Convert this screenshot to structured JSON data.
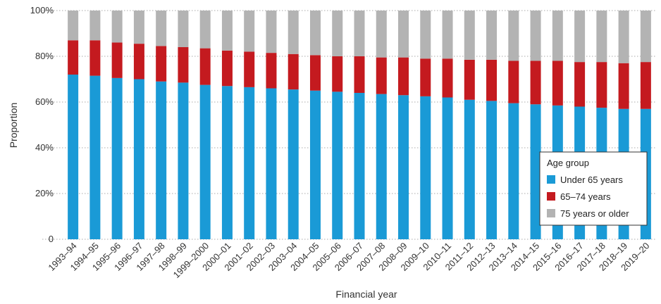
{
  "chart_data": {
    "type": "bar",
    "stacked": true,
    "xlabel": "Financial year",
    "ylabel": "Proportion",
    "ylim": [
      0,
      100
    ],
    "yticks": [
      "0",
      "20%",
      "40%",
      "60%",
      "80%",
      "100%"
    ],
    "categories": [
      "1993–94",
      "1994–95",
      "1995–96",
      "1996–97",
      "1997–98",
      "1998–99",
      "1999–2000",
      "2000–01",
      "2001–02",
      "2002–03",
      "2003–04",
      "2004–05",
      "2005–06",
      "2006–07",
      "2007–08",
      "2008–09",
      "2009–10",
      "2010–11",
      "2011–12",
      "2012–13",
      "2013–14",
      "2014–15",
      "2015–16",
      "2016–17",
      "2017–18",
      "2018–19",
      "2019–20"
    ],
    "legend": {
      "title": "Age group",
      "placement": "bottom-right"
    },
    "series": [
      {
        "name": "Under 65 years",
        "color": "#1a9ad6",
        "values": [
          72,
          71.5,
          70.5,
          70,
          69,
          68.5,
          67.5,
          67,
          66.5,
          66,
          65.5,
          65,
          64.5,
          64,
          63.5,
          63,
          62.5,
          62,
          61,
          60.5,
          59.5,
          59,
          58.5,
          58,
          57.5,
          57,
          57
        ]
      },
      {
        "name": "65–74 years",
        "color": "#c41a1f",
        "values": [
          15,
          15.5,
          15.5,
          15.5,
          15.5,
          15.5,
          16,
          15.5,
          15.5,
          15.5,
          15.5,
          15.5,
          15.5,
          16,
          16,
          16.5,
          16.5,
          17,
          17.5,
          18,
          18.5,
          19,
          19.5,
          19.5,
          20,
          20,
          20.5
        ]
      },
      {
        "name": "75 years or older",
        "color": "#b3b3b3",
        "values": [
          13,
          13,
          14,
          14.5,
          15.5,
          16,
          16.5,
          17.5,
          18,
          18.5,
          19,
          19.5,
          20,
          20,
          20.5,
          20.5,
          21,
          21,
          21.5,
          21.5,
          22,
          22,
          22,
          22.5,
          22.5,
          23,
          22.5
        ]
      }
    ]
  }
}
